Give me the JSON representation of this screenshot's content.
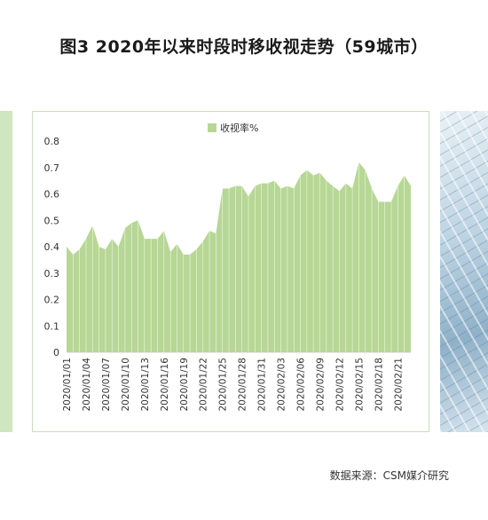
{
  "page_title": "图3  2020年以来时段时移收视走势（59城市）",
  "source_note": "数据来源：CSM媒介研究",
  "colors": {
    "area_fill": "#b7d795",
    "area_stroke": "#ffffff",
    "frame": "#c7dfb6",
    "strip": "#cfe6bf"
  },
  "chart_data": {
    "type": "area",
    "legend": {
      "label": "收视率%",
      "position": "top-center"
    },
    "ylim": [
      0,
      0.8
    ],
    "yticks": [
      "0",
      "0.1",
      "0.2",
      "0.3",
      "0.4",
      "0.5",
      "0.6",
      "0.7",
      "0.8"
    ],
    "xtick_labels": [
      "2020/01/01",
      "2020/01/04",
      "2020/01/07",
      "2020/01/10",
      "2020/01/13",
      "2020/01/16",
      "2020/01/19",
      "2020/01/22",
      "2020/01/25",
      "2020/01/28",
      "2020/01/31",
      "2020/02/03",
      "2020/02/06",
      "2020/02/09",
      "2020/02/12",
      "2020/02/15",
      "2020/02/18",
      "2020/02/21"
    ],
    "x": [
      "2020/01/01",
      "2020/01/02",
      "2020/01/03",
      "2020/01/04",
      "2020/01/05",
      "2020/01/06",
      "2020/01/07",
      "2020/01/08",
      "2020/01/09",
      "2020/01/10",
      "2020/01/11",
      "2020/01/12",
      "2020/01/13",
      "2020/01/14",
      "2020/01/15",
      "2020/01/16",
      "2020/01/17",
      "2020/01/18",
      "2020/01/19",
      "2020/01/20",
      "2020/01/21",
      "2020/01/22",
      "2020/01/23",
      "2020/01/24",
      "2020/01/25",
      "2020/01/26",
      "2020/01/27",
      "2020/01/28",
      "2020/01/29",
      "2020/01/30",
      "2020/01/31",
      "2020/02/01",
      "2020/02/02",
      "2020/02/03",
      "2020/02/04",
      "2020/02/05",
      "2020/02/06",
      "2020/02/07",
      "2020/02/08",
      "2020/02/09",
      "2020/02/10",
      "2020/02/11",
      "2020/02/12",
      "2020/02/13",
      "2020/02/14",
      "2020/02/15",
      "2020/02/16",
      "2020/02/17",
      "2020/02/18",
      "2020/02/19",
      "2020/02/20",
      "2020/02/21",
      "2020/02/22",
      "2020/02/23"
    ],
    "series": [
      {
        "name": "收视率%",
        "values": [
          0.4,
          0.37,
          0.39,
          0.43,
          0.48,
          0.4,
          0.39,
          0.43,
          0.4,
          0.47,
          0.49,
          0.5,
          0.43,
          0.43,
          0.43,
          0.46,
          0.38,
          0.41,
          0.37,
          0.37,
          0.39,
          0.42,
          0.46,
          0.45,
          0.62,
          0.62,
          0.63,
          0.63,
          0.59,
          0.63,
          0.64,
          0.64,
          0.65,
          0.62,
          0.63,
          0.62,
          0.67,
          0.69,
          0.67,
          0.68,
          0.65,
          0.63,
          0.61,
          0.64,
          0.62,
          0.72,
          0.69,
          0.62,
          0.57,
          0.57,
          0.57,
          0.63,
          0.67,
          0.63
        ]
      }
    ]
  }
}
